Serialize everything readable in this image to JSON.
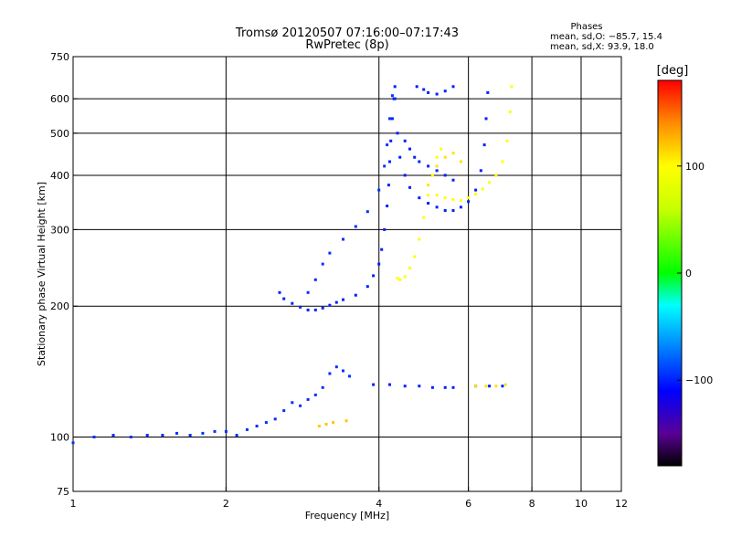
{
  "chart_data": {
    "type": "scatter",
    "title": "Tromsø 20120507 07:16:00–07:17:43",
    "subtitle": "RwPretec (8p)",
    "xlabel": "Frequency [MHz]",
    "ylabel": "Stationary phase Virtual Height [km]",
    "x_scale": "log",
    "y_scale": "log",
    "xlim": [
      1,
      12
    ],
    "ylim": [
      75,
      750
    ],
    "x_ticks": [
      1,
      2,
      4,
      6,
      8,
      10,
      12
    ],
    "y_ticks": [
      75,
      100,
      200,
      300,
      400,
      500,
      600,
      750
    ],
    "x_gridlines": [
      2,
      4,
      6,
      8,
      10
    ],
    "y_gridlines": [
      100,
      200,
      300,
      400,
      500,
      600
    ],
    "grid": true,
    "phase_info": {
      "heading": "Phases",
      "line1": "mean, sd,O: −85.7, 15.4",
      "line2": "mean, sd,X:  93.9, 18.0"
    },
    "colorbar": {
      "label": "[deg]",
      "range": [
        -180,
        180
      ],
      "ticks": [
        {
          "value": 100,
          "label": "100"
        },
        {
          "value": 0,
          "label": "0"
        },
        {
          "value": -100,
          "label": "−100"
        }
      ],
      "stops": [
        {
          "value": -180,
          "color": "#000000"
        },
        {
          "value": -150,
          "color": "#5a0096"
        },
        {
          "value": -110,
          "color": "#0000ff"
        },
        {
          "value": -60,
          "color": "#00a0ff"
        },
        {
          "value": -30,
          "color": "#00ffff"
        },
        {
          "value": 0,
          "color": "#00ff00"
        },
        {
          "value": 60,
          "color": "#c8ff00"
        },
        {
          "value": 100,
          "color": "#ffff00"
        },
        {
          "value": 140,
          "color": "#ff8c00"
        },
        {
          "value": 180,
          "color": "#ff0000"
        }
      ]
    },
    "series": [
      {
        "phase": -95,
        "points": [
          [
            1.0,
            97
          ],
          [
            1.1,
            100
          ],
          [
            1.2,
            101
          ],
          [
            1.3,
            100
          ],
          [
            1.4,
            101
          ],
          [
            1.5,
            101
          ],
          [
            1.6,
            102
          ],
          [
            1.7,
            101
          ],
          [
            1.8,
            102
          ],
          [
            1.9,
            103
          ],
          [
            2.0,
            103
          ],
          [
            2.1,
            101
          ],
          [
            2.2,
            104
          ],
          [
            2.3,
            106
          ],
          [
            2.4,
            108
          ],
          [
            2.5,
            110
          ],
          [
            2.6,
            115
          ],
          [
            2.7,
            120
          ],
          [
            2.8,
            118
          ],
          [
            2.9,
            122
          ],
          [
            3.0,
            125
          ],
          [
            3.1,
            130
          ],
          [
            3.2,
            140
          ],
          [
            3.3,
            145
          ],
          [
            3.4,
            142
          ],
          [
            3.5,
            138
          ]
        ]
      },
      {
        "phase": -100,
        "points": [
          [
            2.55,
            215
          ],
          [
            2.6,
            208
          ],
          [
            2.7,
            203
          ],
          [
            2.8,
            199
          ],
          [
            2.9,
            196
          ],
          [
            3.0,
            196
          ],
          [
            3.1,
            198
          ],
          [
            3.2,
            201
          ],
          [
            3.3,
            204
          ],
          [
            3.4,
            207
          ],
          [
            3.6,
            212
          ],
          [
            3.8,
            222
          ],
          [
            3.9,
            235
          ],
          [
            4.0,
            250
          ],
          [
            4.05,
            270
          ],
          [
            4.1,
            300
          ],
          [
            4.15,
            340
          ],
          [
            4.18,
            380
          ],
          [
            4.2,
            430
          ],
          [
            4.22,
            480
          ],
          [
            4.25,
            540
          ],
          [
            4.28,
            600
          ],
          [
            4.3,
            640
          ]
        ]
      },
      {
        "phase": -95,
        "points": [
          [
            2.9,
            215
          ],
          [
            3.0,
            230
          ],
          [
            3.1,
            250
          ],
          [
            3.2,
            265
          ],
          [
            3.4,
            285
          ],
          [
            3.6,
            305
          ],
          [
            3.8,
            330
          ],
          [
            4.0,
            370
          ],
          [
            4.1,
            420
          ],
          [
            4.15,
            470
          ],
          [
            4.2,
            540
          ],
          [
            4.25,
            610
          ]
        ]
      },
      {
        "phase": -100,
        "points": [
          [
            4.3,
            600
          ],
          [
            4.35,
            500
          ],
          [
            4.4,
            440
          ],
          [
            4.5,
            400
          ],
          [
            4.6,
            375
          ],
          [
            4.8,
            355
          ],
          [
            5.0,
            345
          ],
          [
            5.2,
            338
          ],
          [
            5.4,
            332
          ],
          [
            5.6,
            332
          ],
          [
            5.8,
            338
          ],
          [
            6.0,
            348
          ],
          [
            6.2,
            370
          ],
          [
            6.35,
            410
          ],
          [
            6.45,
            470
          ],
          [
            6.5,
            540
          ],
          [
            6.55,
            620
          ]
        ]
      },
      {
        "phase": -100,
        "points": [
          [
            4.5,
            480
          ],
          [
            4.6,
            460
          ],
          [
            4.7,
            440
          ],
          [
            4.8,
            430
          ],
          [
            5.0,
            420
          ],
          [
            5.2,
            410
          ],
          [
            5.4,
            400
          ],
          [
            5.6,
            390
          ]
        ]
      },
      {
        "phase": -100,
        "points": [
          [
            3.9,
            132
          ],
          [
            4.2,
            132
          ],
          [
            4.5,
            131
          ],
          [
            4.8,
            131
          ],
          [
            5.1,
            130
          ],
          [
            5.4,
            130
          ],
          [
            5.6,
            130
          ],
          [
            6.2,
            131
          ],
          [
            6.6,
            131
          ],
          [
            7.0,
            131
          ]
        ]
      },
      {
        "phase": -100,
        "points": [
          [
            4.75,
            640
          ],
          [
            4.9,
            630
          ],
          [
            5.0,
            620
          ],
          [
            5.2,
            615
          ],
          [
            5.4,
            625
          ],
          [
            5.6,
            640
          ]
        ]
      },
      {
        "phase": 100,
        "points": [
          [
            4.35,
            232
          ],
          [
            4.4,
            230
          ],
          [
            4.5,
            234
          ],
          [
            4.6,
            245
          ],
          [
            4.7,
            260
          ],
          [
            4.8,
            285
          ],
          [
            4.9,
            320
          ],
          [
            5.0,
            360
          ],
          [
            5.1,
            400
          ],
          [
            5.2,
            440
          ],
          [
            5.3,
            460
          ]
        ]
      },
      {
        "phase": 100,
        "points": [
          [
            5.2,
            360
          ],
          [
            5.4,
            355
          ],
          [
            5.6,
            352
          ],
          [
            5.8,
            350
          ],
          [
            6.0,
            355
          ],
          [
            6.2,
            362
          ],
          [
            6.4,
            372
          ],
          [
            6.6,
            385
          ],
          [
            6.8,
            400
          ],
          [
            7.0,
            430
          ],
          [
            7.15,
            480
          ],
          [
            7.25,
            560
          ],
          [
            7.3,
            640
          ]
        ]
      },
      {
        "phase": 110,
        "points": [
          [
            5.0,
            380
          ],
          [
            5.2,
            420
          ],
          [
            5.4,
            440
          ],
          [
            5.6,
            450
          ],
          [
            5.8,
            430
          ]
        ]
      },
      {
        "phase": 120,
        "points": [
          [
            3.05,
            106
          ],
          [
            3.15,
            107
          ],
          [
            3.25,
            108
          ],
          [
            3.45,
            109
          ]
        ]
      },
      {
        "phase": 110,
        "points": [
          [
            6.2,
            131
          ],
          [
            6.5,
            131
          ],
          [
            6.8,
            131
          ],
          [
            7.1,
            132
          ]
        ]
      }
    ]
  }
}
